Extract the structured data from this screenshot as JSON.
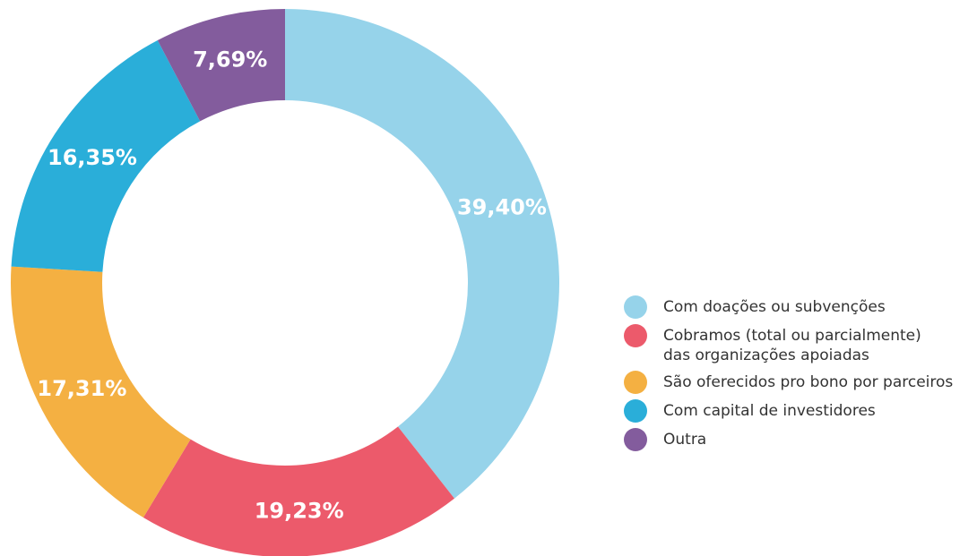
{
  "chart_data": {
    "type": "donut",
    "categories": [
      "Com doações ou subvenções",
      "Cobramos (total ou parcialmente)\ndas organizações apoiadas",
      "São oferecidos pro bono por parceiros",
      "Com capital de investidores",
      "Outra"
    ],
    "values": [
      39.4,
      19.23,
      17.31,
      16.35,
      7.69
    ],
    "value_labels": [
      "39,40%",
      "19,23%",
      "17,31%",
      "16,35%",
      "7,69%"
    ],
    "colors": [
      "#96d3ea",
      "#ec5a6b",
      "#f4b042",
      "#2aaed9",
      "#835c9d"
    ],
    "legend": "right"
  }
}
